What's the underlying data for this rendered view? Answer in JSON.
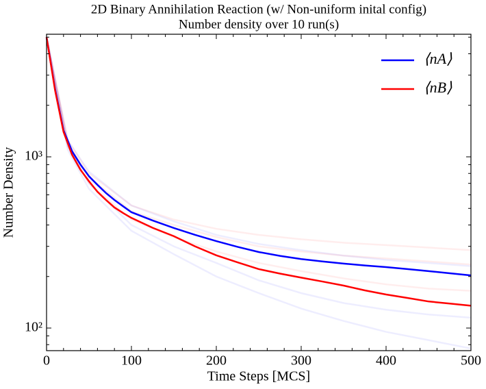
{
  "chart_data": {
    "type": "line",
    "title": "2D Binary Annihilation Reaction (w/ Non-uniform inital config)",
    "subtitle": "Number density over 10 run(s)",
    "xlabel": "Time Steps [MCS]",
    "ylabel": "Number Density",
    "x": [
      0,
      10,
      20,
      30,
      40,
      50,
      60,
      70,
      80,
      90,
      100,
      125,
      150,
      175,
      200,
      225,
      250,
      275,
      300,
      325,
      350,
      375,
      400,
      425,
      450,
      475,
      500
    ],
    "series": [
      {
        "name": "⟨nA⟩",
        "color": "#0000ff",
        "values": [
          5000,
          2500,
          1430,
          1080,
          900,
          770,
          686,
          615,
          560,
          515,
          475,
          425,
          384,
          350,
          322,
          298,
          278,
          264,
          253,
          245,
          238,
          232,
          227,
          221,
          215,
          209,
          203
        ]
      },
      {
        "name": "⟨nB⟩",
        "color": "#ff0000",
        "values": [
          5000,
          2450,
          1400,
          1030,
          840,
          720,
          625,
          560,
          506,
          470,
          440,
          385,
          344,
          300,
          266,
          242,
          221,
          208,
          197,
          187,
          177,
          166,
          157,
          150,
          143,
          139,
          135
        ]
      }
    ],
    "runs_x": [
      0,
      25,
      50,
      100,
      150,
      200,
      250,
      300,
      350,
      400,
      450,
      500
    ],
    "runs_opacity": 0.07,
    "runs": [
      {
        "color": "#0000ff",
        "values": [
          5000,
          1150,
          700,
          400,
          300,
          240,
          190,
          160,
          140,
          128,
          120,
          115
        ]
      },
      {
        "color": "#0000ff",
        "values": [
          5000,
          1100,
          650,
          370,
          270,
          200,
          160,
          130,
          110,
          95,
          85,
          76
        ]
      },
      {
        "color": "#0000ff",
        "values": [
          5000,
          1250,
          820,
          520,
          420,
          350,
          310,
          285,
          265,
          250,
          240,
          230
        ]
      },
      {
        "color": "#ff0000",
        "values": [
          5000,
          1250,
          800,
          520,
          430,
          380,
          350,
          330,
          315,
          305,
          295,
          285
        ]
      },
      {
        "color": "#ff0000",
        "values": [
          5000,
          1200,
          760,
          480,
          400,
          340,
          300,
          280,
          265,
          255,
          245,
          235
        ]
      },
      {
        "color": "#ff0000",
        "values": [
          5000,
          1150,
          700,
          430,
          340,
          280,
          240,
          215,
          195,
          180,
          170,
          165
        ]
      }
    ],
    "xlim": [
      0,
      500
    ],
    "xticks": [
      0,
      100,
      200,
      300,
      400,
      500
    ],
    "xminor": [
      20,
      40,
      60,
      80,
      120,
      140,
      160,
      180,
      220,
      240,
      260,
      280,
      320,
      340,
      360,
      380,
      420,
      440,
      460,
      480
    ],
    "ylim": [
      73.8,
      5200
    ],
    "yscale": "log",
    "yticks": [
      {
        "value": 100,
        "label": "10²"
      },
      {
        "value": 1000,
        "label": "10³"
      }
    ],
    "yminor": [
      80,
      90,
      200,
      300,
      400,
      500,
      600,
      700,
      800,
      900,
      2000,
      3000,
      4000,
      5000
    ],
    "legend": "upper right"
  }
}
